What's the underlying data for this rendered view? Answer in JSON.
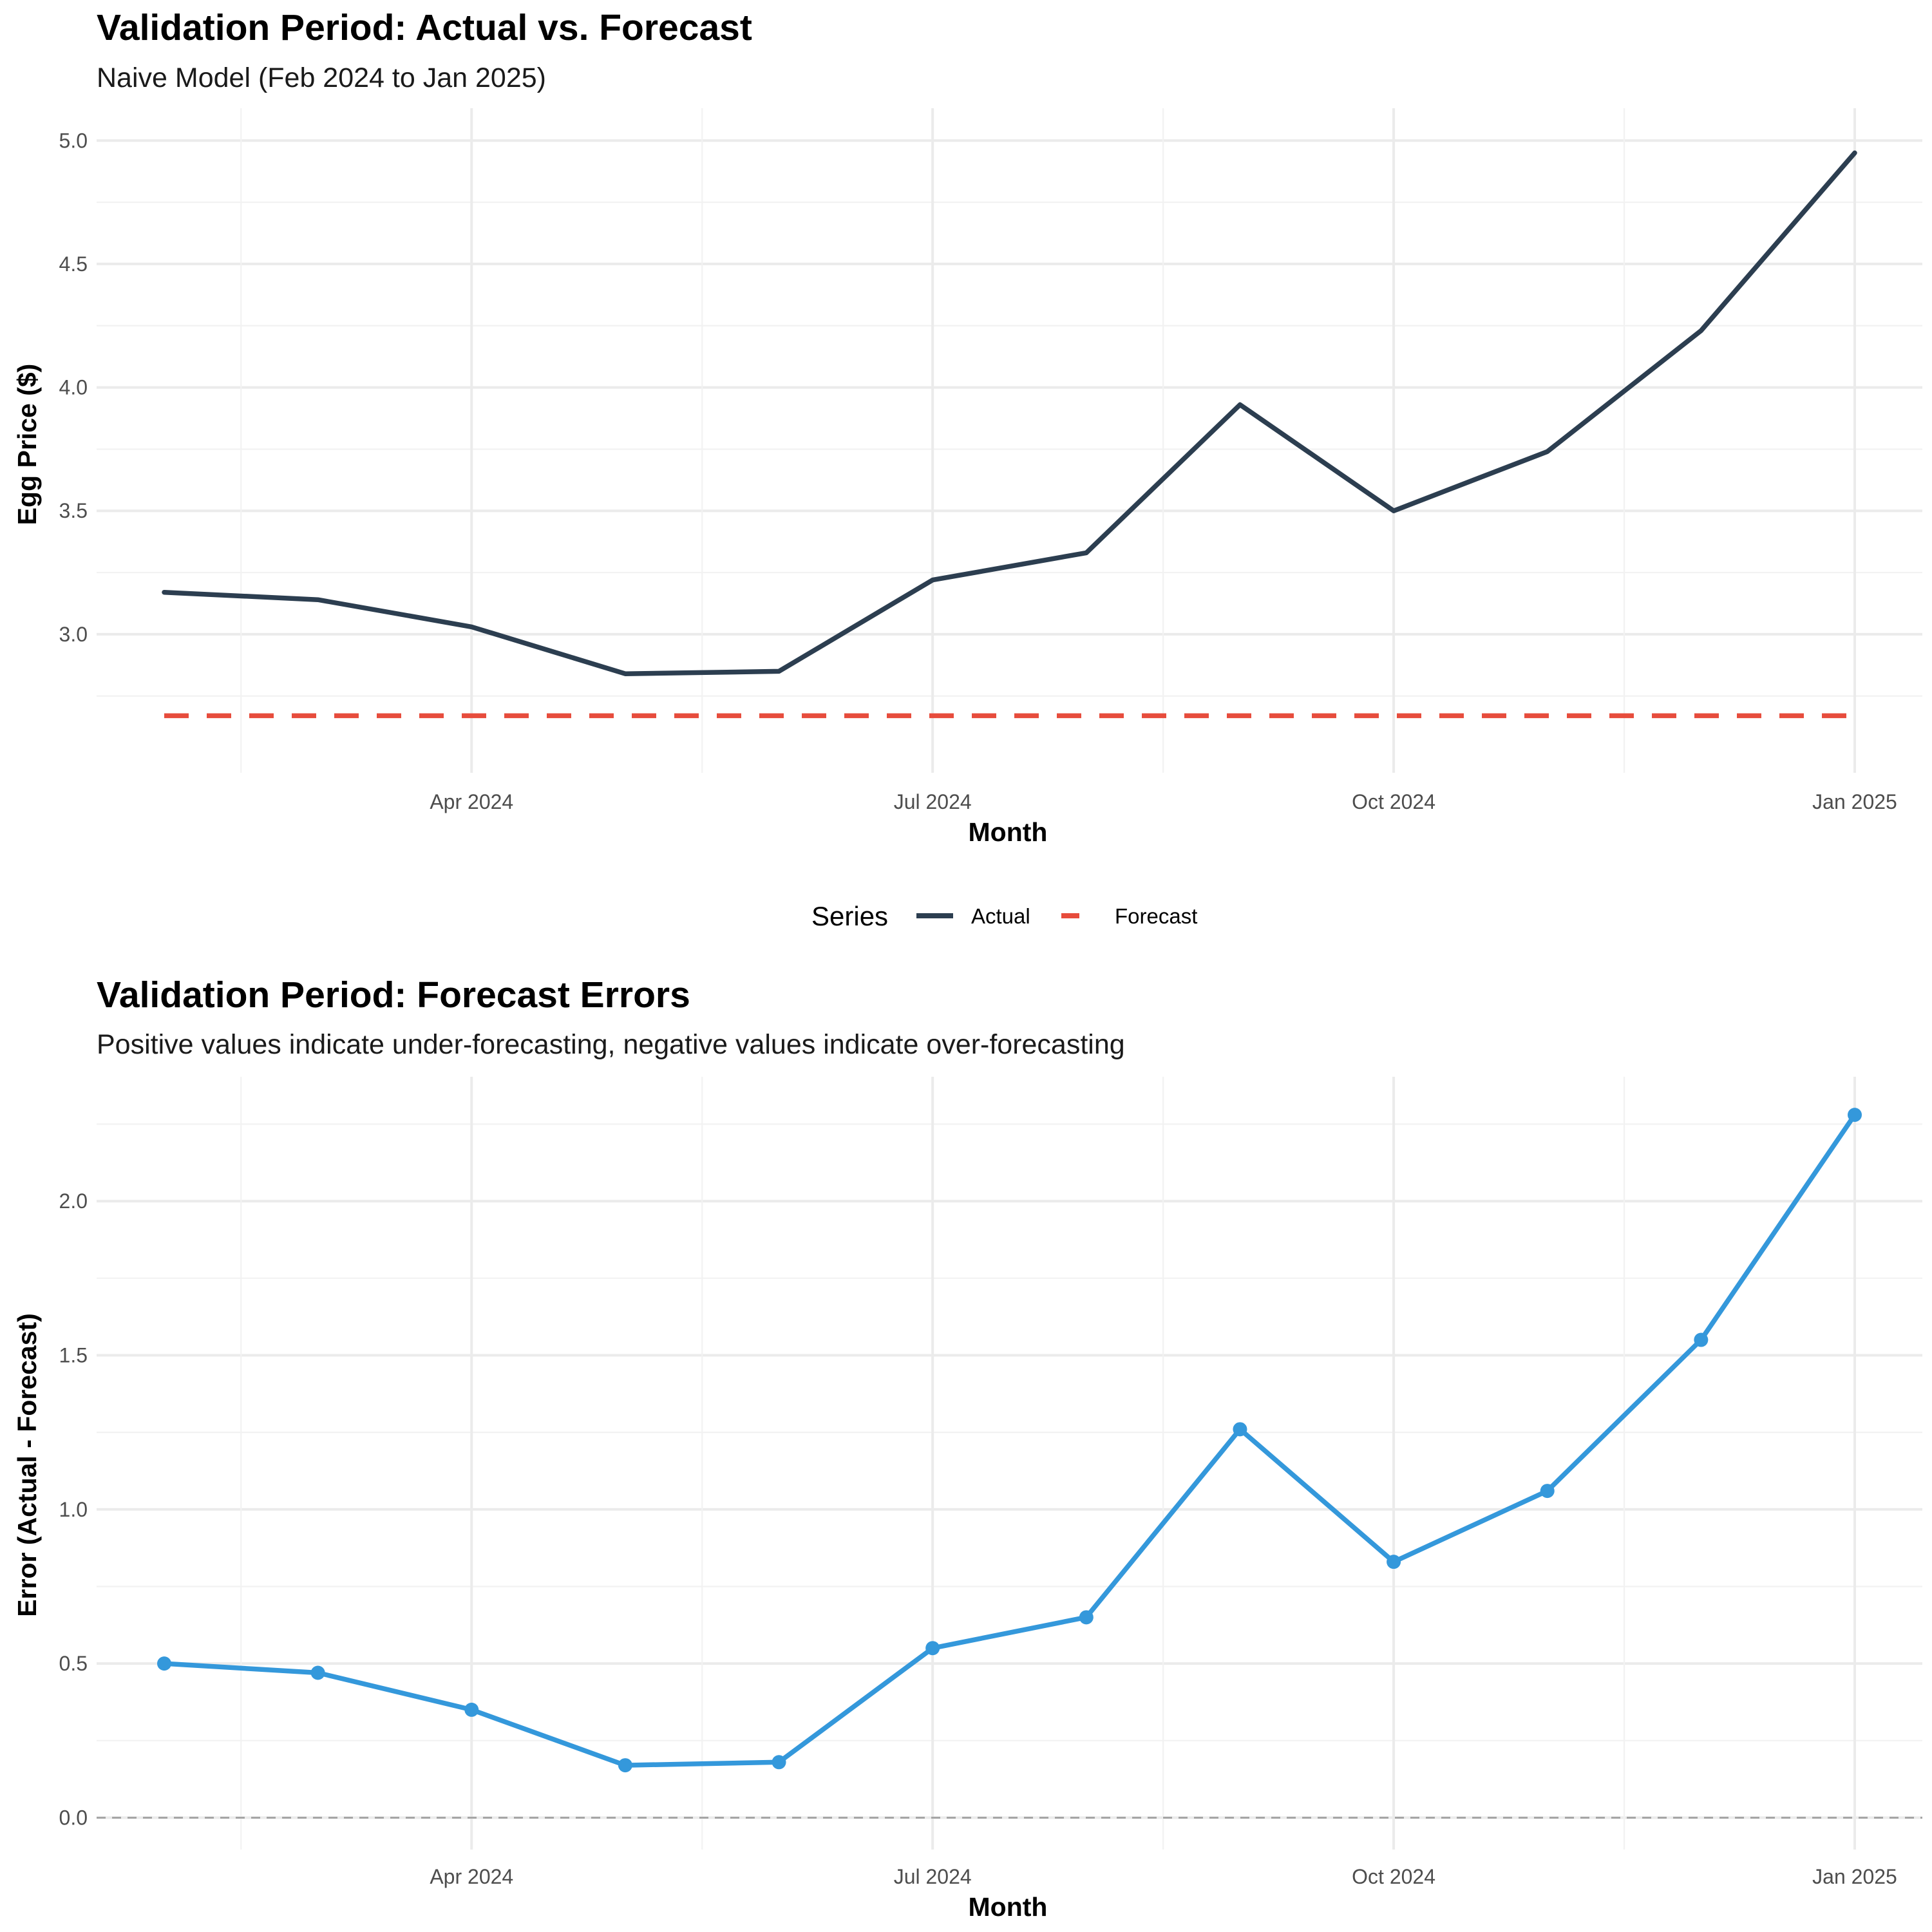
{
  "chart_data": [
    {
      "type": "line",
      "title": "Validation Period: Actual vs. Forecast",
      "subtitle": "Naive Model (Feb 2024 to Jan 2025)",
      "xlabel": "Month",
      "ylabel": "Egg Price ($)",
      "x": [
        "2024-02",
        "2024-03",
        "2024-04",
        "2024-05",
        "2024-06",
        "2024-07",
        "2024-08",
        "2024-09",
        "2024-10",
        "2024-11",
        "2024-12",
        "2025-01"
      ],
      "x_ticks": [
        "Apr 2024",
        "Jul 2024",
        "Oct 2024",
        "Jan 2025"
      ],
      "y_ticks": [
        "3.0",
        "3.5",
        "4.0",
        "4.5",
        "5.0"
      ],
      "ylim": [
        2.55,
        5.02
      ],
      "grid": true,
      "legend": {
        "title": "Series",
        "position": "bottom"
      },
      "series": [
        {
          "name": "Actual",
          "color": "#2c3e50",
          "style": "solid",
          "values": [
            3.17,
            3.14,
            3.03,
            2.84,
            2.85,
            3.22,
            3.33,
            3.93,
            3.5,
            3.74,
            4.23,
            4.95
          ]
        },
        {
          "name": "Forecast",
          "color": "#e74c3c",
          "style": "dashed",
          "values": [
            2.67,
            2.67,
            2.67,
            2.67,
            2.67,
            2.67,
            2.67,
            2.67,
            2.67,
            2.67,
            2.67,
            2.67
          ]
        }
      ]
    },
    {
      "type": "line",
      "title": "Validation Period: Forecast Errors",
      "subtitle": "Positive values indicate under-forecasting, negative values indicate over-forecasting",
      "xlabel": "Month",
      "ylabel": "Error (Actual - Forecast)",
      "x": [
        "2024-02",
        "2024-03",
        "2024-04",
        "2024-05",
        "2024-06",
        "2024-07",
        "2024-08",
        "2024-09",
        "2024-10",
        "2024-11",
        "2024-12",
        "2025-01"
      ],
      "x_ticks": [
        "Apr 2024",
        "Jul 2024",
        "Oct 2024",
        "Jan 2025"
      ],
      "y_ticks": [
        "0.0",
        "0.5",
        "1.0",
        "1.5",
        "2.0"
      ],
      "ylim": [
        0,
        2.3
      ],
      "grid": true,
      "reference_line": {
        "y": 0,
        "color": "#a6a6a6",
        "style": "dashed"
      },
      "series": [
        {
          "color": "#3498db",
          "style": "solid",
          "markers": true,
          "values": [
            0.5,
            0.47,
            0.35,
            0.17,
            0.18,
            0.55,
            0.65,
            1.26,
            0.83,
            1.06,
            1.55,
            2.28
          ]
        }
      ]
    }
  ]
}
